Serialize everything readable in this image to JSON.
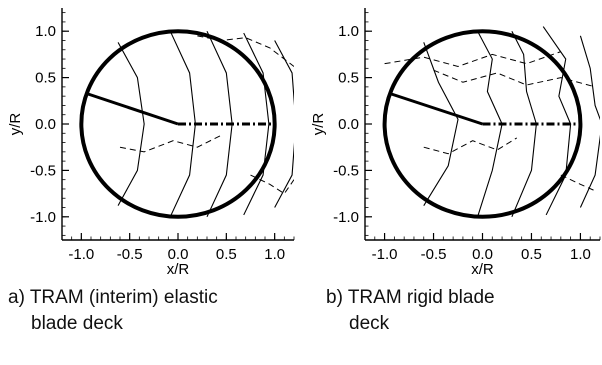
{
  "chart_data": [
    {
      "type": "line",
      "caption": [
        "a) TRAM (interim) elastic",
        "blade deck"
      ],
      "xlabel": "x/R",
      "ylabel": "y/R",
      "xlim": [
        -1.2,
        1.2
      ],
      "ylim": [
        -1.25,
        1.25
      ],
      "xticks": [
        "-1.0",
        "-0.5",
        "0.0",
        "0.5",
        "1.0"
      ],
      "yticks": [
        "1.0",
        "0.5",
        "0.0",
        "-0.5",
        "-1.0"
      ],
      "grid": false,
      "rotor_disk": {
        "center": [
          0,
          0
        ],
        "radius": 1.0
      },
      "reference_blade": {
        "x": [
          0,
          -0.95
        ],
        "y": [
          0,
          0.33
        ]
      },
      "dash_dot_axis": {
        "x": [
          0,
          1.0
        ],
        "y": [
          0,
          0
        ]
      },
      "wake_sections": [
        {
          "x": [
            -0.62,
            -0.42,
            -0.35,
            -0.42,
            -0.62
          ],
          "y": [
            0.88,
            0.5,
            0.0,
            -0.5,
            -0.88
          ]
        },
        {
          "x": [
            -0.08,
            0.12,
            0.18,
            0.12,
            -0.08
          ],
          "y": [
            1.0,
            0.55,
            0.0,
            -0.55,
            -1.0
          ]
        },
        {
          "x": [
            0.3,
            0.5,
            0.56,
            0.5,
            0.3
          ],
          "y": [
            1.0,
            0.55,
            0.0,
            -0.55,
            -1.0
          ]
        },
        {
          "x": [
            0.68,
            0.88,
            0.94,
            0.88,
            0.68
          ],
          "y": [
            0.98,
            0.55,
            0.0,
            -0.55,
            -0.98
          ]
        },
        {
          "x": [
            1.0,
            1.18,
            1.22,
            1.18,
            1.0
          ],
          "y": [
            0.9,
            0.55,
            0.0,
            -0.55,
            -0.9
          ]
        }
      ],
      "wake_dashed": [
        {
          "x": [
            -0.6,
            -0.35,
            -0.05,
            0.2,
            0.45
          ],
          "y": [
            -0.25,
            -0.3,
            -0.18,
            -0.25,
            -0.12
          ]
        },
        {
          "x": [
            0.2,
            0.45,
            0.7,
            0.95,
            1.2
          ],
          "y": [
            0.95,
            0.9,
            0.93,
            0.82,
            0.62
          ]
        },
        {
          "x": [
            0.75,
            0.95,
            1.1,
            1.2
          ],
          "y": [
            -0.55,
            -0.65,
            -0.75,
            -0.6
          ]
        }
      ]
    },
    {
      "type": "line",
      "caption": [
        "b) TRAM rigid blade",
        "deck"
      ],
      "xlabel": "x/R",
      "ylabel": "y/R",
      "xlim": [
        -1.2,
        1.2
      ],
      "ylim": [
        -1.25,
        1.25
      ],
      "xticks": [
        "-1.0",
        "-0.5",
        "0.0",
        "0.5",
        "1.0"
      ],
      "yticks": [
        "1.0",
        "0.5",
        "0.0",
        "-0.5",
        "-1.0"
      ],
      "grid": false,
      "rotor_disk": {
        "center": [
          0,
          0
        ],
        "radius": 1.0
      },
      "reference_blade": {
        "x": [
          0,
          -0.95
        ],
        "y": [
          0,
          0.33
        ]
      },
      "dash_dot_axis": {
        "x": [
          0,
          1.0
        ],
        "y": [
          0,
          0
        ]
      },
      "wake_sections": [
        {
          "x": [
            -0.6,
            -0.45,
            -0.25,
            -0.35,
            -0.6
          ],
          "y": [
            0.88,
            0.45,
            0.05,
            -0.45,
            -0.88
          ]
        },
        {
          "x": [
            -0.05,
            0.1,
            0.05,
            0.2,
            0.1,
            -0.05
          ],
          "y": [
            1.0,
            0.7,
            0.35,
            0.0,
            -0.5,
            -1.0
          ]
        },
        {
          "x": [
            0.3,
            0.42,
            0.45,
            0.55,
            0.5,
            0.3
          ],
          "y": [
            1.0,
            0.75,
            0.35,
            0.0,
            -0.5,
            -1.0
          ]
        },
        {
          "x": [
            0.62,
            0.85,
            0.78,
            0.9,
            0.85,
            0.65
          ],
          "y": [
            1.05,
            0.7,
            0.3,
            0.0,
            -0.55,
            -0.98
          ]
        },
        {
          "x": [
            1.0,
            1.1,
            1.15,
            1.22,
            1.15,
            1.0
          ],
          "y": [
            0.95,
            0.6,
            0.2,
            0.0,
            -0.55,
            -0.9
          ]
        }
      ],
      "wake_dashed": [
        {
          "x": [
            -1.0,
            -0.6,
            -0.25,
            0.1,
            0.45,
            0.8
          ],
          "y": [
            0.65,
            0.72,
            0.62,
            0.75,
            0.65,
            0.78
          ]
        },
        {
          "x": [
            -0.5,
            -0.2,
            0.15,
            0.45,
            0.8,
            1.15
          ],
          "y": [
            0.58,
            0.45,
            0.55,
            0.42,
            0.5,
            0.4
          ]
        },
        {
          "x": [
            -0.6,
            -0.35,
            -0.1,
            0.15,
            0.35
          ],
          "y": [
            -0.25,
            -0.32,
            -0.18,
            -0.28,
            -0.15
          ]
        },
        {
          "x": [
            0.8,
            1.0,
            1.15
          ],
          "y": [
            -0.55,
            -0.65,
            -0.72
          ]
        }
      ]
    }
  ]
}
